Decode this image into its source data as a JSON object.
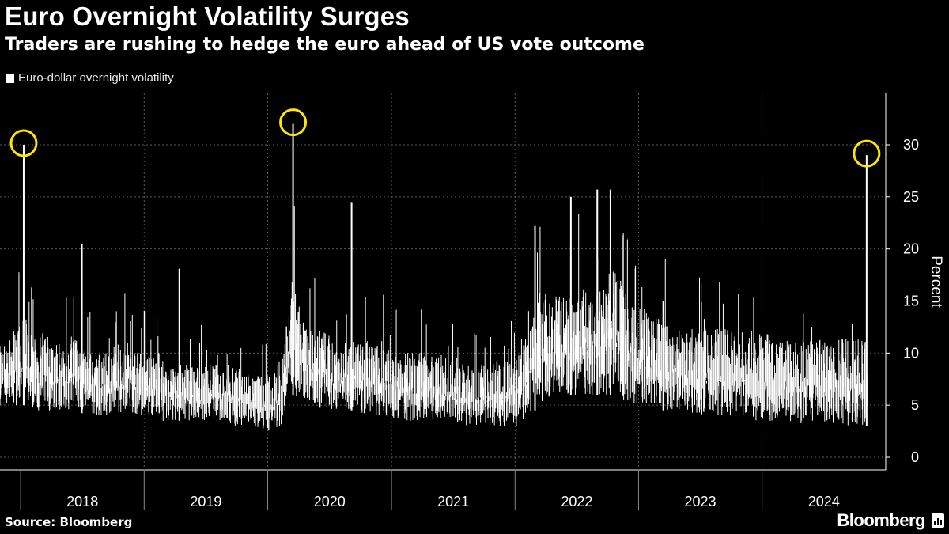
{
  "header": {
    "title": "Euro Overnight Volatility Surges",
    "subtitle": "Traders are rushing to hedge the euro ahead of US vote outcome"
  },
  "legend": {
    "label": "Euro-dollar overnight volatility"
  },
  "footer": {
    "source": "Source: Bloomberg",
    "brand": "Bloomberg"
  },
  "colors": {
    "background": "#000000",
    "series": "#ffffff",
    "highlight": "#ffe600",
    "grid": "#5a5a5a"
  },
  "chart_data": {
    "type": "area",
    "title": "Euro Overnight Volatility Surges",
    "subtitle": "Traders are rushing to hedge the euro ahead of US vote outcome",
    "ylabel": "Percent",
    "xlabel": "",
    "ylim": [
      0,
      33
    ],
    "yticks": [
      0,
      5,
      10,
      15,
      20,
      25,
      30
    ],
    "xticks": [
      "2018",
      "2019",
      "2020",
      "2021",
      "2022",
      "2023",
      "2024"
    ],
    "x_range": [
      "2017-11-01",
      "2024-11-10"
    ],
    "grid": true,
    "series": [
      {
        "name": "Euro-dollar overnight volatility",
        "dates": [
          "2017-11",
          "2017-12",
          "2018-01",
          "2018-02",
          "2018-03",
          "2018-04",
          "2018-05",
          "2018-06",
          "2018-07",
          "2018-08",
          "2018-09",
          "2018-10",
          "2018-11",
          "2018-12",
          "2019-01",
          "2019-02",
          "2019-03",
          "2019-04",
          "2019-05",
          "2019-06",
          "2019-07",
          "2019-08",
          "2019-09",
          "2019-10",
          "2019-11",
          "2019-12",
          "2020-01",
          "2020-02",
          "2020-03",
          "2020-04",
          "2020-05",
          "2020-06",
          "2020-07",
          "2020-08",
          "2020-09",
          "2020-10",
          "2020-11",
          "2020-12",
          "2021-01",
          "2021-02",
          "2021-03",
          "2021-04",
          "2021-05",
          "2021-06",
          "2021-07",
          "2021-08",
          "2021-09",
          "2021-10",
          "2021-11",
          "2021-12",
          "2022-01",
          "2022-02",
          "2022-03",
          "2022-04",
          "2022-05",
          "2022-06",
          "2022-07",
          "2022-08",
          "2022-09",
          "2022-10",
          "2022-11",
          "2022-12",
          "2023-01",
          "2023-02",
          "2023-03",
          "2023-04",
          "2023-05",
          "2023-06",
          "2023-07",
          "2023-08",
          "2023-09",
          "2023-10",
          "2023-11",
          "2023-12",
          "2024-01",
          "2024-02",
          "2024-03",
          "2024-04",
          "2024-05",
          "2024-06",
          "2024-07",
          "2024-08",
          "2024-09",
          "2024-10",
          "2024-11"
        ],
        "low": [
          5,
          5,
          5,
          4.5,
          4.5,
          4.5,
          4.5,
          4.5,
          4,
          4,
          4,
          4,
          4.5,
          4,
          4,
          3.5,
          3.5,
          3.5,
          3.5,
          3.5,
          3.5,
          3.5,
          3,
          3,
          3,
          2.5,
          2.5,
          3,
          6,
          5.5,
          5,
          4.5,
          4.5,
          4.5,
          4.5,
          4,
          4,
          4,
          3.5,
          3.5,
          3.5,
          3.5,
          3.5,
          3.5,
          3,
          3,
          3,
          3,
          3,
          3,
          3,
          4,
          5,
          5.5,
          6,
          6,
          6,
          6,
          6,
          6,
          5.5,
          5,
          5,
          5,
          4.5,
          4.5,
          4.5,
          4,
          4,
          4,
          4,
          4,
          4,
          3.5,
          3.5,
          3.5,
          3.5,
          3,
          3,
          3,
          3,
          3,
          3,
          3,
          3
        ],
        "high": [
          10,
          11,
          12,
          10,
          11,
          10,
          10,
          11,
          9,
          9,
          9,
          10,
          10,
          9,
          9,
          9,
          8,
          8,
          8,
          8,
          8,
          8,
          8,
          7.5,
          7,
          7,
          7,
          9,
          16,
          12,
          11,
          11,
          10,
          10,
          10,
          10,
          10,
          10,
          9,
          9,
          9,
          9,
          9,
          8.5,
          8.5,
          8,
          8,
          8,
          8.5,
          8.5,
          9,
          11,
          14,
          14,
          14,
          14,
          15,
          14,
          15,
          16,
          15,
          13,
          13,
          12,
          12,
          11.5,
          11,
          11,
          11,
          11,
          11,
          11,
          11,
          10.5,
          10.5,
          10,
          10,
          10,
          10,
          10,
          10,
          10,
          10,
          10,
          11
        ],
        "peaks": [
          {
            "date": "2018-01-10",
            "value": 30
          },
          {
            "date": "2018-07-01",
            "value": 20.5
          },
          {
            "date": "2019-04-15",
            "value": 18.1
          },
          {
            "date": "2020-03-16",
            "value": 32
          },
          {
            "date": "2020-09-05",
            "value": 24.5
          },
          {
            "date": "2022-03-01",
            "value": 22.2
          },
          {
            "date": "2022-06-15",
            "value": 25
          },
          {
            "date": "2022-09-01",
            "value": 25.7
          },
          {
            "date": "2022-10-10",
            "value": 25.7
          },
          {
            "date": "2023-03-15",
            "value": 15
          },
          {
            "date": "2024-11-05",
            "value": 29
          }
        ],
        "highlighted_peaks": [
          {
            "date": "2018-01-10",
            "value": 30
          },
          {
            "date": "2020-03-16",
            "value": 32
          },
          {
            "date": "2024-11-05",
            "value": 29
          }
        ]
      }
    ]
  }
}
